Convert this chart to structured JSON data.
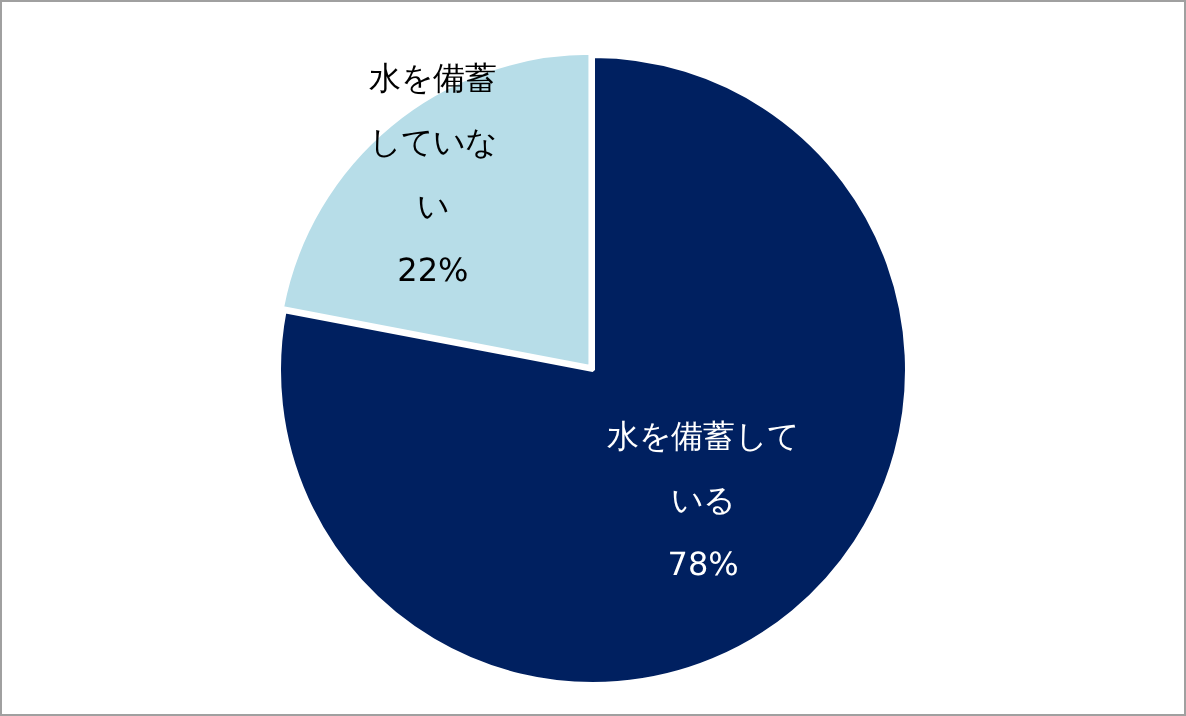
{
  "chart_data": {
    "type": "pie",
    "categories": [
      "水を備蓄している",
      "水を備蓄していない"
    ],
    "values": [
      78,
      22
    ],
    "colors": [
      "#002060",
      "#b7dde8"
    ],
    "value_labels": [
      "78%",
      "22%"
    ],
    "legend": false
  }
}
